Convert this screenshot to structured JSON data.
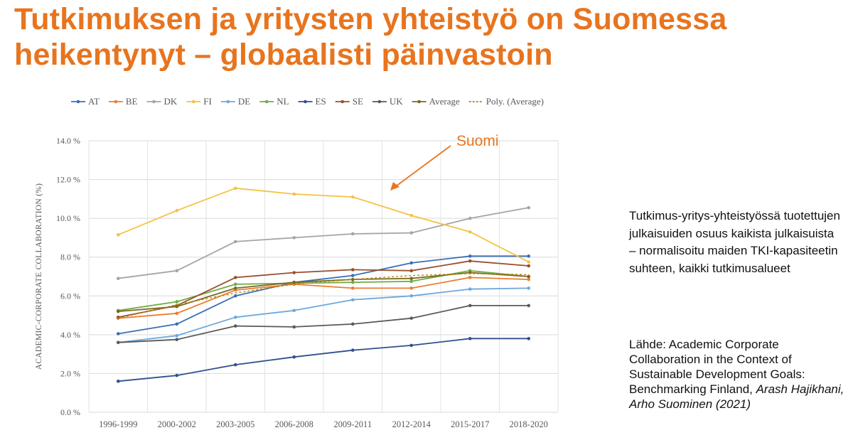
{
  "slide": {
    "title_line1": "Tutkimuksen ja yritysten yhteistyö on Suomessa",
    "title_line2": "heikentynyt – globaalisti päinvastoin",
    "description": "Tutkimus-yritys-yhteistyössä tuotettujen julkaisuiden osuus kaikista julkaisuista – normalisoitu maiden TKI-kapasiteetin suhteen, kaikki tutkimusalueet",
    "source_prefix": "Lähde: Academic Corporate Collaboration in the Context of Sustainable Development Goals: Benchmarking Finland, ",
    "source_authors": "Arash Hajikhani, Arho Suominen (2021)",
    "accent_color": "#E8741E"
  },
  "chart_data": {
    "type": "line",
    "ylabel": "ACADEMIC-CORPORATE COLLABORATION (%)",
    "categories": [
      "1996-1999",
      "2000-2002",
      "2003-2005",
      "2006-2008",
      "2009-2011",
      "2012-2014",
      "2015-2017",
      "2018-2020"
    ],
    "ylim": [
      0,
      14
    ],
    "yticks": [
      "0.0 %",
      "2.0 %",
      "4.0 %",
      "6.0 %",
      "8.0 %",
      "10.0 %",
      "12.0 %",
      "14.0 %"
    ],
    "grid": true,
    "legend_position": "top",
    "annotation": {
      "text": "Suomi",
      "color": "#E8741E"
    },
    "series": [
      {
        "name": "AT",
        "color": "#3A6FB7",
        "values": [
          4.05,
          4.55,
          6.0,
          6.7,
          7.05,
          7.7,
          8.05,
          8.05
        ]
      },
      {
        "name": "BE",
        "color": "#ED7D31",
        "values": [
          4.85,
          5.1,
          6.3,
          6.6,
          6.4,
          6.4,
          6.95,
          6.85
        ]
      },
      {
        "name": "DK",
        "color": "#A5A5A5",
        "values": [
          6.9,
          7.3,
          8.8,
          9.0,
          9.2,
          9.25,
          10.0,
          10.55
        ]
      },
      {
        "name": "FI",
        "color": "#F5C242",
        "values": [
          9.15,
          10.4,
          11.55,
          11.25,
          11.1,
          10.15,
          9.3,
          7.75
        ]
      },
      {
        "name": "DE",
        "color": "#6FA8DC",
        "values": [
          3.6,
          3.95,
          4.9,
          5.25,
          5.8,
          6.0,
          6.35,
          6.4
        ]
      },
      {
        "name": "NL",
        "color": "#70AD47",
        "values": [
          5.25,
          5.7,
          6.6,
          6.65,
          6.7,
          6.75,
          7.3,
          7.0
        ]
      },
      {
        "name": "ES",
        "color": "#2F4F8F",
        "values": [
          1.6,
          1.9,
          2.45,
          2.85,
          3.2,
          3.45,
          3.8,
          3.8
        ]
      },
      {
        "name": "SE",
        "color": "#9C4F2B",
        "values": [
          4.9,
          5.5,
          6.95,
          7.2,
          7.35,
          7.3,
          7.8,
          7.55
        ]
      },
      {
        "name": "UK",
        "color": "#5A5A5A",
        "values": [
          3.6,
          3.75,
          4.45,
          4.4,
          4.55,
          4.85,
          5.5,
          5.5
        ]
      },
      {
        "name": "Average",
        "color": "#7A6A1F",
        "values": [
          5.2,
          5.45,
          6.4,
          6.7,
          6.85,
          6.9,
          7.2,
          7.0
        ]
      },
      {
        "name": "Poly. (Average)",
        "color": "#B8860B",
        "dashed": true,
        "values": [
          4.85,
          5.55,
          6.15,
          6.6,
          6.85,
          7.05,
          7.15,
          7.1
        ]
      }
    ]
  }
}
